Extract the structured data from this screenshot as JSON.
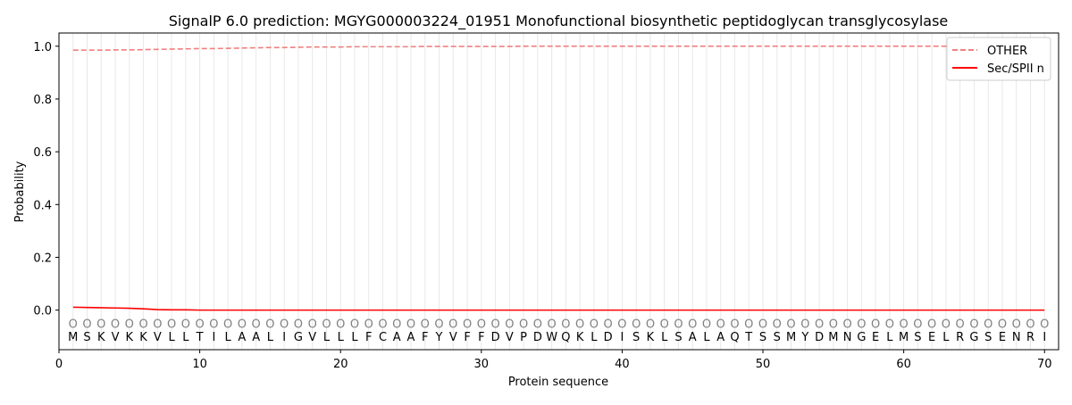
{
  "chart_data": {
    "type": "line",
    "title": "SignalP 6.0 prediction: MGYG000003224_01951 Monofunctional biosynthetic peptidoglycan transglycosylase",
    "xlabel": "Protein sequence",
    "ylabel": "Probability",
    "xlim": [
      0,
      71
    ],
    "ylim": [
      -0.15,
      1.05
    ],
    "xticks": [
      0,
      10,
      20,
      30,
      40,
      50,
      60,
      70
    ],
    "yticks": [
      0.0,
      0.2,
      0.4,
      0.6,
      0.8,
      1.0
    ],
    "grid": "vertical lines at each residue",
    "legend_position": "top-right",
    "colors": {
      "other": "#f08080",
      "sec_spii_n": "#ff0000",
      "grid": "#e8e8e8",
      "marker": "#808080"
    },
    "sequence": [
      "M",
      "S",
      "K",
      "V",
      "K",
      "K",
      "V",
      "L",
      "L",
      "T",
      "I",
      "L",
      "A",
      "A",
      "L",
      "I",
      "G",
      "V",
      "L",
      "L",
      "L",
      "F",
      "C",
      "A",
      "A",
      "F",
      "Y",
      "V",
      "F",
      "F",
      "D",
      "V",
      "P",
      "D",
      "W",
      "Q",
      "K",
      "L",
      "D",
      "I",
      "S",
      "K",
      "L",
      "S",
      "A",
      "L",
      "A",
      "Q",
      "T",
      "S",
      "S",
      "M",
      "Y",
      "D",
      "M",
      "N",
      "G",
      "E",
      "L",
      "M",
      "S",
      "E",
      "L",
      "R",
      "G",
      "S",
      "E",
      "N",
      "R",
      "I"
    ],
    "prediction_label": "O",
    "series": [
      {
        "name": "OTHER",
        "style": "dashed",
        "values": [
          0.985,
          0.985,
          0.985,
          0.986,
          0.986,
          0.987,
          0.988,
          0.989,
          0.99,
          0.991,
          0.991,
          0.992,
          0.993,
          0.994,
          0.995,
          0.995,
          0.996,
          0.997,
          0.997,
          0.997,
          0.998,
          0.998,
          0.998,
          0.998,
          0.998,
          0.999,
          0.999,
          0.999,
          0.999,
          0.999,
          0.999,
          0.999,
          1.0,
          1.0,
          1.0,
          1.0,
          1.0,
          1.0,
          1.0,
          1.0,
          1.0,
          1.0,
          1.0,
          1.0,
          1.0,
          1.0,
          1.0,
          1.0,
          1.0,
          1.0,
          1.0,
          1.0,
          1.0,
          1.0,
          1.0,
          1.0,
          1.0,
          1.0,
          1.0,
          1.0,
          1.0,
          1.0,
          1.0,
          1.0,
          1.0,
          1.0,
          1.0,
          1.0,
          1.0,
          1.0
        ]
      },
      {
        "name": "Sec/SPII n",
        "style": "solid",
        "values": [
          0.011,
          0.01,
          0.009,
          0.008,
          0.007,
          0.005,
          0.002,
          0.001,
          0.001,
          0.0,
          0.0,
          0.0,
          0.0,
          0.0,
          0.0,
          0.0,
          0.0,
          0.0,
          0.0,
          0.0,
          0.0,
          0.0,
          0.0,
          0.0,
          0.0,
          0.0,
          0.0,
          0.0,
          0.0,
          0.0,
          0.0,
          0.0,
          0.0,
          0.0,
          0.0,
          0.0,
          0.0,
          0.0,
          0.0,
          0.0,
          0.0,
          0.0,
          0.0,
          0.0,
          0.0,
          0.0,
          0.0,
          0.0,
          0.0,
          0.0,
          0.0,
          0.0,
          0.0,
          0.0,
          0.0,
          0.0,
          0.0,
          0.0,
          0.0,
          0.0,
          0.0,
          0.0,
          0.0,
          0.0,
          0.0,
          0.0,
          0.0,
          0.0,
          0.0,
          0.0
        ]
      }
    ]
  }
}
